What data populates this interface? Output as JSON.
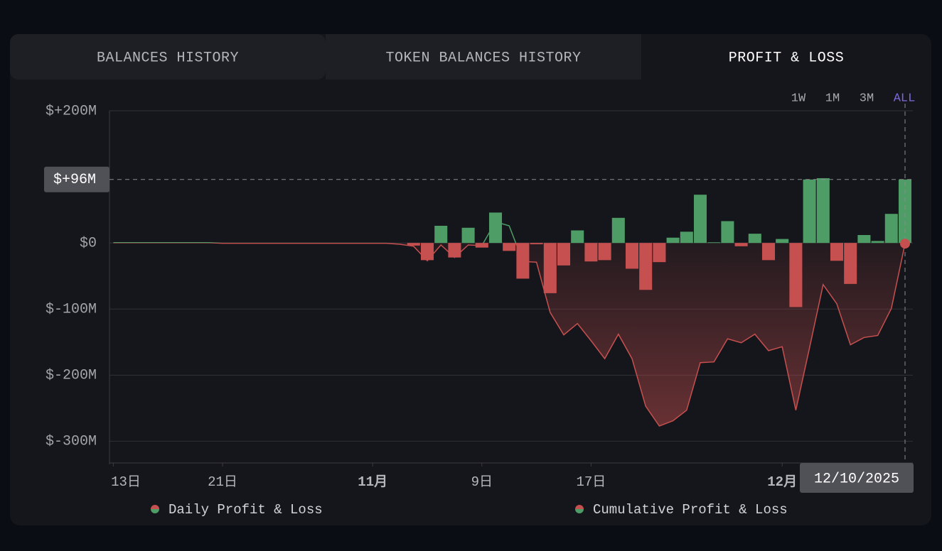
{
  "tabs": [
    {
      "label": "BALANCES HISTORY",
      "active": false
    },
    {
      "label": "TOKEN BALANCES HISTORY",
      "active": false
    },
    {
      "label": "PROFIT & LOSS",
      "active": true
    }
  ],
  "ranges": [
    {
      "label": "1W",
      "active": false
    },
    {
      "label": "1M",
      "active": false
    },
    {
      "label": "3M",
      "active": false
    },
    {
      "label": "ALL",
      "active": true
    }
  ],
  "chart_data": {
    "type": "bar",
    "x": [
      "2025-10-13",
      "2025-10-14",
      "2025-10-15",
      "2025-10-16",
      "2025-10-17",
      "2025-10-18",
      "2025-10-19",
      "2025-10-20",
      "2025-10-21",
      "2025-10-22",
      "2025-10-23",
      "2025-10-24",
      "2025-10-25",
      "2025-10-26",
      "2025-10-27",
      "2025-10-28",
      "2025-10-29",
      "2025-10-30",
      "2025-10-31",
      "2025-11-01",
      "2025-11-02",
      "2025-11-03",
      "2025-11-04",
      "2025-11-05",
      "2025-11-06",
      "2025-11-07",
      "2025-11-08",
      "2025-11-09",
      "2025-11-10",
      "2025-11-11",
      "2025-11-12",
      "2025-11-13",
      "2025-11-14",
      "2025-11-15",
      "2025-11-16",
      "2025-11-17",
      "2025-11-18",
      "2025-11-19",
      "2025-11-20",
      "2025-11-21",
      "2025-11-22",
      "2025-11-23",
      "2025-11-24",
      "2025-11-25",
      "2025-11-26",
      "2025-11-27",
      "2025-11-28",
      "2025-11-29",
      "2025-11-30",
      "2025-12-01",
      "2025-12-02",
      "2025-12-03",
      "2025-12-04",
      "2025-12-05",
      "2025-12-06",
      "2025-12-07",
      "2025-12-08",
      "2025-12-09",
      "2025-12-10"
    ],
    "series": [
      {
        "name": "Daily Profit & Loss",
        "type": "bar",
        "color": "#4e9c66",
        "negative_color": "#c64f4f",
        "values": [
          0,
          0,
          0,
          0,
          0,
          0,
          0,
          0,
          0,
          0,
          0,
          0,
          0,
          0,
          0,
          0,
          0,
          0,
          0,
          0,
          0,
          0,
          -4,
          -26,
          26,
          -22,
          23,
          -7,
          46,
          -12,
          -54,
          -2,
          -76,
          -34,
          19,
          -28,
          -26,
          38,
          -39,
          -71,
          -29,
          8,
          17,
          73,
          1,
          33,
          -5,
          14,
          -26,
          6,
          -97,
          96,
          98,
          -27,
          -62,
          12,
          3,
          44,
          96
        ]
      },
      {
        "name": "Cumulative Profit & Loss",
        "type": "line",
        "color": "#4e9c66",
        "negative_color": "#c64f4f",
        "values": [
          0.5,
          0.5,
          0.5,
          0.5,
          0.5,
          0.5,
          0.5,
          0.5,
          -0.5,
          -0.5,
          -0.5,
          -0.5,
          -0.5,
          -0.5,
          -0.5,
          -0.5,
          -0.5,
          -0.5,
          -0.5,
          -0.5,
          -0.5,
          -2,
          -5,
          -27,
          -3,
          -22,
          -3,
          -4,
          32,
          26,
          -28,
          -29,
          -105,
          -139,
          -122,
          -148,
          -175,
          -138,
          -175,
          -247,
          -277,
          -269,
          -253,
          -181,
          -180,
          -145,
          -151,
          -138,
          -163,
          -157,
          -253,
          -159,
          -63,
          -92,
          -154,
          -143,
          -140,
          -99,
          -1
        ]
      }
    ],
    "ylim": [
      -335,
      200
    ],
    "yticks": [
      {
        "value": 200,
        "label": "$+200M"
      },
      {
        "value": 0,
        "label": "$0"
      },
      {
        "value": -100,
        "label": "$-100M"
      },
      {
        "value": -200,
        "label": "$-200M"
      },
      {
        "value": -300,
        "label": "$-300M"
      }
    ],
    "xticks": [
      {
        "value": "2025-10-13",
        "label": "13日"
      },
      {
        "value": "2025-10-21",
        "label": "21日"
      },
      {
        "value": "2025-11-01",
        "label": "11月"
      },
      {
        "value": "2025-11-09",
        "label": "9日"
      },
      {
        "value": "2025-11-17",
        "label": "17日"
      },
      {
        "value": "2025-12-01",
        "label": "12月"
      }
    ],
    "grid": true,
    "crosshair": {
      "y": {
        "value": 96,
        "label": "$+96M"
      },
      "x": {
        "value": "2025-12-10",
        "label": "12/10/2025"
      }
    }
  }
}
